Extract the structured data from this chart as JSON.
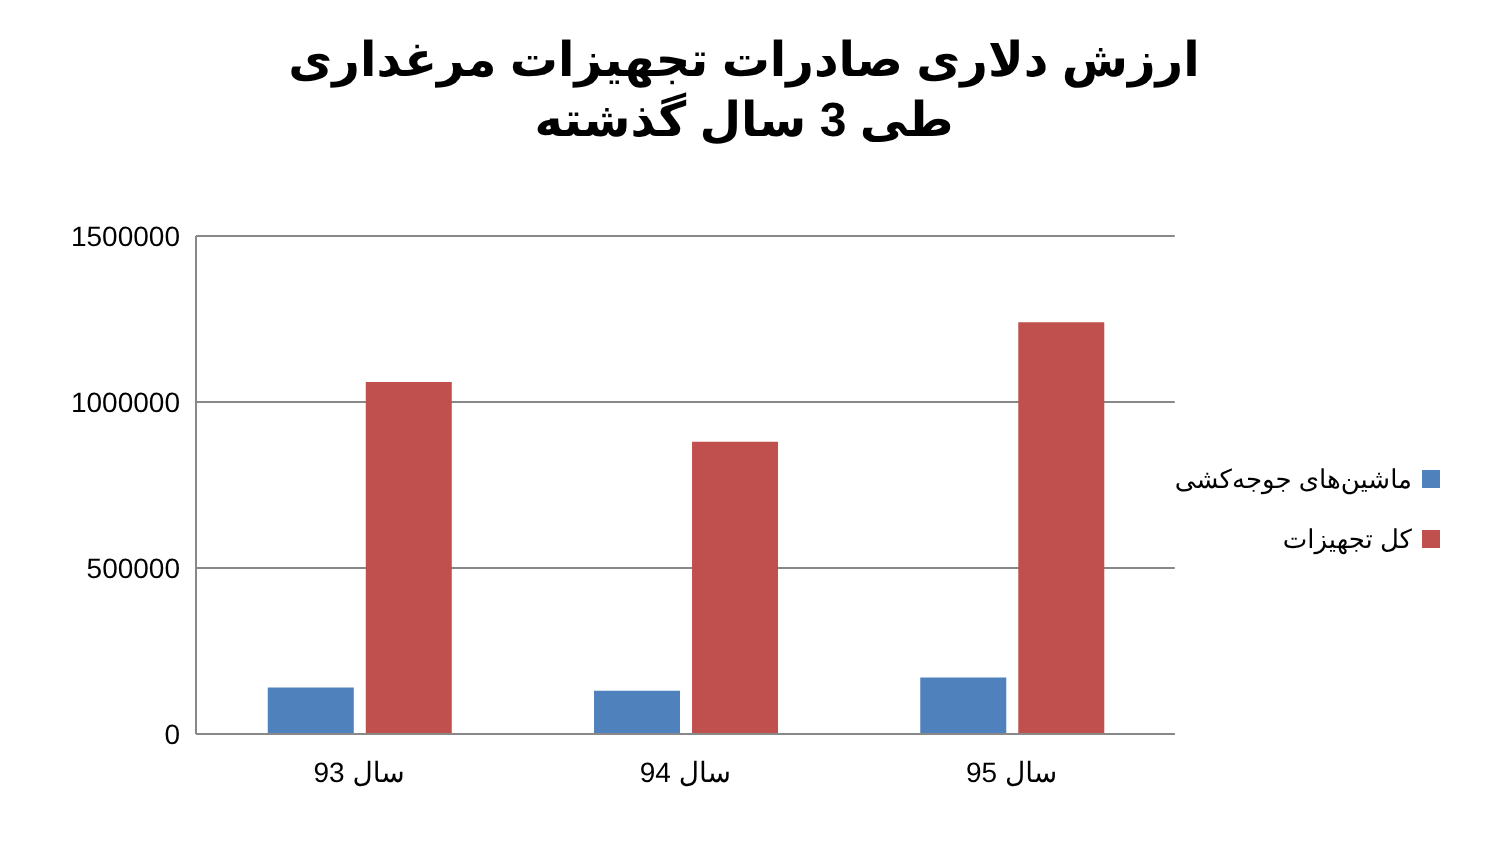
{
  "chart_data": {
    "type": "bar",
    "title": "ارزش دلاری صادرات تجهیزات مرغداری\nطی 3 سال گذشته",
    "categories": [
      "سال 93",
      "سال 94",
      "سال 95"
    ],
    "series": [
      {
        "name": "ماشین‌های جوجه‌کشی",
        "color": "#4f81bd",
        "values": [
          140000,
          130000,
          170000
        ]
      },
      {
        "name": "کل تجهیزات",
        "color": "#c0504d",
        "values": [
          1060000,
          880000,
          1240000
        ]
      }
    ],
    "ylim": [
      0,
      1500000
    ],
    "yticks": [
      0,
      500000,
      1000000,
      1500000
    ],
    "grid": "y",
    "legend": "right"
  }
}
